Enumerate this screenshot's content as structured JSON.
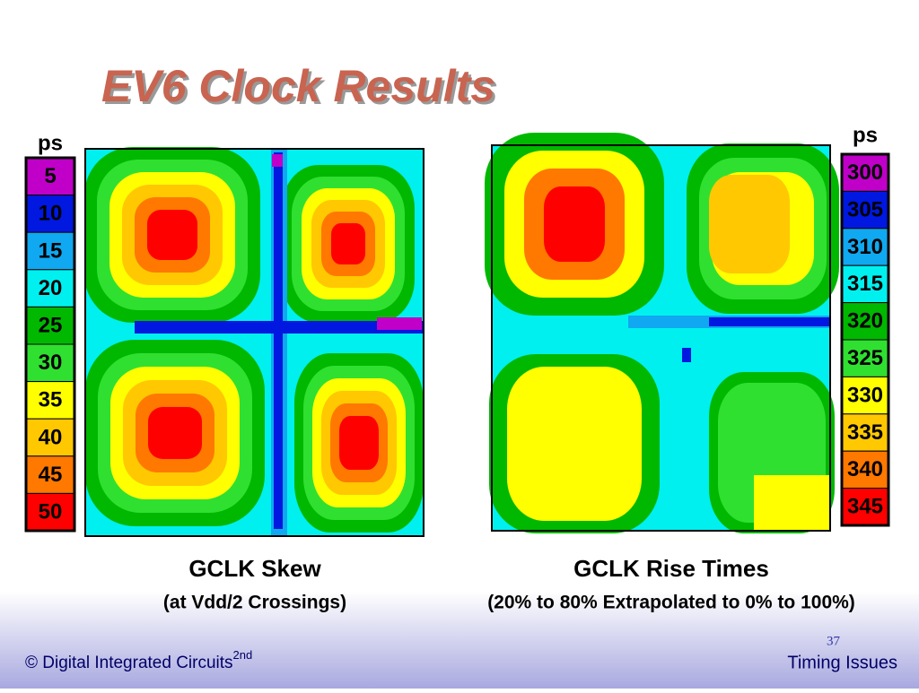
{
  "title": "EV6 Clock Results",
  "left_legend": {
    "unit": "ps",
    "levels": [
      {
        "label": 5,
        "color": "#c000c8"
      },
      {
        "label": 10,
        "color": "#0018e0"
      },
      {
        "label": 15,
        "color": "#10a8f0"
      },
      {
        "label": 20,
        "color": "#00f0f0"
      },
      {
        "label": 25,
        "color": "#00b800"
      },
      {
        "label": 30,
        "color": "#30e030"
      },
      {
        "label": 35,
        "color": "#ffff00"
      },
      {
        "label": 40,
        "color": "#ffc800"
      },
      {
        "label": 45,
        "color": "#ff7800"
      },
      {
        "label": 50,
        "color": "#ff0000"
      }
    ]
  },
  "right_legend": {
    "unit": "ps",
    "levels": [
      {
        "label": 300,
        "color": "#c000c8"
      },
      {
        "label": 305,
        "color": "#0018e0"
      },
      {
        "label": 310,
        "color": "#10a8f0"
      },
      {
        "label": 315,
        "color": "#00f0f0"
      },
      {
        "label": 320,
        "color": "#00b800"
      },
      {
        "label": 325,
        "color": "#30e030"
      },
      {
        "label": 330,
        "color": "#ffff00"
      },
      {
        "label": 335,
        "color": "#ffc800"
      },
      {
        "label": 340,
        "color": "#ff7800"
      },
      {
        "label": 345,
        "color": "#ff0000"
      }
    ]
  },
  "left_caption": {
    "title": "GCLK Skew",
    "subtitle": "(at Vdd/2 Crossings)"
  },
  "right_caption": {
    "title": "GCLK Rise Times",
    "subtitle": "(20% to 80% Extrapolated to 0% to 100%)"
  },
  "footer": {
    "left": "© Digital Integrated Circuits",
    "left_sup": "2nd",
    "page": "37",
    "right": "Timing Issues"
  }
}
